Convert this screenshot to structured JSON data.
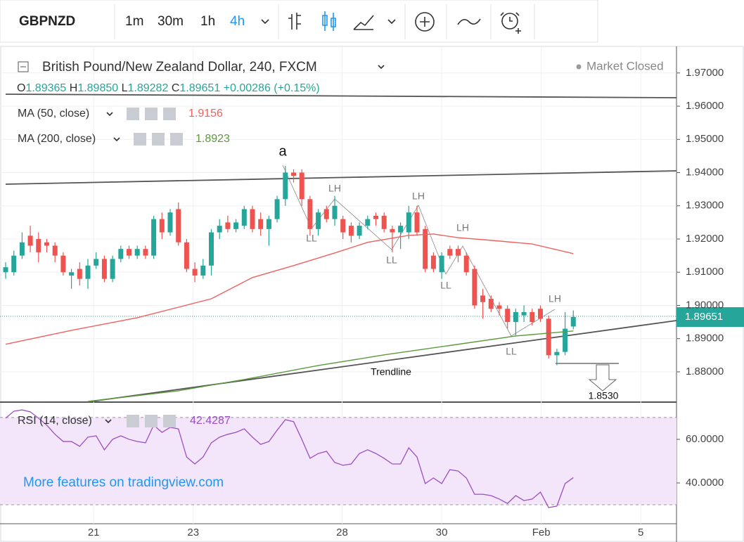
{
  "toolbar": {
    "symbol": "GBPNZD",
    "intervals": [
      "1m",
      "30m",
      "1h",
      "4h"
    ]
  },
  "watermark": "More features on tradingview.com",
  "chart_data": [
    {
      "type": "candlestick",
      "title": "British Pound/New Zealand Dollar, 240, FXCM",
      "status": "Market Closed",
      "ohlc_labels": [
        "O",
        "H",
        "L",
        "C"
      ],
      "last_candle_labels": [
        "1.89365",
        "1.89850",
        "1.89282",
        "1.89651"
      ],
      "change": "+0.00286 (+0.15%)",
      "up_color": "#26a69a",
      "down_color": "#ef5350",
      "candles": [
        [
          1.91,
          1.913,
          1.908,
          1.9115
        ],
        [
          1.91,
          1.9165,
          1.909,
          1.915
        ],
        [
          1.915,
          1.922,
          1.914,
          1.919
        ],
        [
          1.921,
          1.924,
          1.916,
          1.918
        ],
        [
          1.92,
          1.922,
          1.913,
          1.916
        ],
        [
          1.919,
          1.92,
          1.916,
          1.918
        ],
        [
          1.918,
          1.919,
          1.913,
          1.915
        ],
        [
          1.915,
          1.916,
          1.909,
          1.91
        ],
        [
          1.909,
          1.911,
          1.905,
          1.91
        ],
        [
          1.911,
          1.913,
          1.906,
          1.908
        ],
        [
          1.908,
          1.914,
          1.905,
          1.912
        ],
        [
          1.912,
          1.916,
          1.911,
          1.914
        ],
        [
          1.914,
          1.915,
          1.907,
          1.908
        ],
        [
          1.908,
          1.915,
          1.907,
          1.914
        ],
        [
          1.914,
          1.918,
          1.913,
          1.917
        ],
        [
          1.917,
          1.918,
          1.914,
          1.915
        ],
        [
          1.915,
          1.918,
          1.914,
          1.917
        ],
        [
          1.917,
          1.918,
          1.914,
          1.915
        ],
        [
          1.915,
          1.927,
          1.914,
          1.926
        ],
        [
          1.926,
          1.928,
          1.92,
          1.922
        ],
        [
          1.922,
          1.929,
          1.921,
          1.928
        ],
        [
          1.929,
          1.931,
          1.918,
          1.919
        ],
        [
          1.919,
          1.92,
          1.91,
          1.911
        ],
        [
          1.911,
          1.913,
          1.907,
          1.909
        ],
        [
          1.909,
          1.914,
          1.908,
          1.912
        ],
        [
          1.912,
          1.923,
          1.909,
          1.922
        ],
        [
          1.922,
          1.926,
          1.92,
          1.924
        ],
        [
          1.925,
          1.927,
          1.922,
          1.923
        ],
        [
          1.923,
          1.926,
          1.922,
          1.925
        ],
        [
          1.924,
          1.93,
          1.923,
          1.929
        ],
        [
          1.929,
          1.93,
          1.922,
          1.923
        ],
        [
          1.926,
          1.928,
          1.921,
          1.923
        ],
        [
          1.923,
          1.927,
          1.918,
          1.926
        ],
        [
          1.926,
          1.933,
          1.925,
          1.932
        ],
        [
          1.932,
          1.942,
          1.93,
          1.94
        ],
        [
          1.94,
          1.941,
          1.937,
          1.939
        ],
        [
          1.94,
          1.941,
          1.93,
          1.932
        ],
        [
          1.932,
          1.933,
          1.921,
          1.923
        ],
        [
          1.923,
          1.929,
          1.921,
          1.928
        ],
        [
          1.929,
          1.93,
          1.925,
          1.926
        ],
        [
          1.926,
          1.933,
          1.924,
          1.93
        ],
        [
          1.926,
          1.927,
          1.92,
          1.922
        ],
        [
          1.924,
          1.925,
          1.919,
          1.921
        ],
        [
          1.921,
          1.925,
          1.92,
          1.924
        ],
        [
          1.924,
          1.927,
          1.923,
          1.926
        ],
        [
          1.927,
          1.928,
          1.924,
          1.926
        ],
        [
          1.927,
          1.928,
          1.922,
          1.923
        ],
        [
          1.923,
          1.924,
          1.916,
          1.922
        ],
        [
          1.922,
          1.925,
          1.917,
          1.924
        ],
        [
          1.922,
          1.93,
          1.92,
          1.928
        ],
        [
          1.928,
          1.93,
          1.921,
          1.922
        ],
        [
          1.923,
          1.924,
          1.91,
          1.911
        ],
        [
          1.915,
          1.916,
          1.91,
          1.911
        ],
        [
          1.91,
          1.916,
          1.908,
          1.915
        ],
        [
          1.917,
          1.918,
          1.914,
          1.915
        ],
        [
          1.917,
          1.918,
          1.913,
          1.915
        ],
        [
          1.915,
          1.916,
          1.909,
          1.91
        ],
        [
          1.911,
          1.912,
          1.899,
          1.9
        ],
        [
          1.903,
          1.905,
          1.896,
          1.901
        ],
        [
          1.902,
          1.903,
          1.898,
          1.899
        ],
        [
          1.9,
          1.901,
          1.897,
          1.899
        ],
        [
          1.899,
          1.9,
          1.893,
          1.895
        ],
        [
          1.895,
          1.899,
          1.891,
          1.898
        ],
        [
          1.897,
          1.9,
          1.895,
          1.898
        ],
        [
          1.898,
          1.899,
          1.894,
          1.895
        ],
        [
          1.899,
          1.9,
          1.895,
          1.896
        ],
        [
          1.896,
          1.897,
          1.884,
          1.885
        ],
        [
          1.885,
          1.887,
          1.882,
          1.886
        ],
        [
          1.886,
          1.898,
          1.885,
          1.893
        ],
        [
          1.89365,
          1.8985,
          1.89282,
          1.89651
        ]
      ],
      "series": [
        {
          "name": "MA (50, close)",
          "color": "#f0605d",
          "x": [
            0,
            8,
            16,
            25,
            30,
            35,
            40,
            44,
            49,
            52,
            55,
            59,
            64,
            69
          ],
          "values": [
            1.8883,
            1.8925,
            1.8963,
            1.902,
            1.9084,
            1.912,
            1.9158,
            1.919,
            1.9211,
            1.9215,
            1.9204,
            1.9196,
            1.9185,
            1.9156
          ]
        },
        {
          "name": "MA (200, close)",
          "color": "#5b9a3c",
          "x": [
            10,
            21,
            29,
            38,
            46,
            55,
            62,
            69
          ],
          "values": [
            1.8711,
            1.8743,
            1.8777,
            1.8819,
            1.8851,
            1.8883,
            1.8908,
            1.8923
          ]
        }
      ],
      "xlim": [
        -0.684,
        81.54
      ],
      "xticks": [
        {
          "value": 10.7,
          "label": "21"
        },
        {
          "value": 22.8,
          "label": "23"
        },
        {
          "value": 40.9,
          "label": "28"
        },
        {
          "value": 53.0,
          "label": "30"
        },
        {
          "value": 65.1,
          "label": "Feb"
        },
        {
          "value": 77.2,
          "label": "5"
        }
      ],
      "ylim": [
        1.8711,
        1.978
      ],
      "yticks": [
        {
          "value": 1.97,
          "label": "1.97000"
        },
        {
          "value": 1.96,
          "label": "1.96000"
        },
        {
          "value": 1.95,
          "label": "1.95000"
        },
        {
          "value": 1.94,
          "label": "1.94000"
        },
        {
          "value": 1.93,
          "label": "1.93000"
        },
        {
          "value": 1.92,
          "label": "1.92000"
        },
        {
          "value": 1.91,
          "label": "1.91000"
        },
        {
          "value": 1.9,
          "label": "1.90000"
        },
        {
          "value": 1.89,
          "label": "1.89000"
        },
        {
          "value": 1.88,
          "label": "1.88000"
        }
      ],
      "grid": true,
      "annotations": [
        "a",
        "LH",
        "LL",
        "LH",
        "LL",
        "LH",
        "LL",
        "LH",
        "LL",
        "Trendline",
        "1.8530"
      ]
    },
    {
      "type": "line",
      "name": "RSI (14, close)",
      "color": "#9c4fc2",
      "values": [
        69.7,
        72.9,
        73.5,
        72.6,
        69.7,
        66.5,
        62.3,
        59.0,
        59.0,
        56.8,
        61.0,
        61.6,
        55.2,
        60.0,
        61.6,
        60.0,
        59.0,
        58.4,
        66.5,
        63.2,
        65.5,
        64.8,
        51.9,
        48.7,
        51.9,
        58.4,
        61.0,
        62.3,
        63.2,
        64.8,
        61.0,
        57.7,
        59.0,
        64.2,
        69.0,
        68.1,
        60.0,
        51.3,
        53.5,
        54.5,
        49.4,
        48.1,
        48.7,
        53.5,
        55.2,
        53.5,
        51.3,
        48.7,
        48.7,
        56.1,
        51.9,
        39.7,
        42.3,
        39.7,
        46.1,
        45.5,
        42.3,
        34.8,
        34.8,
        34.2,
        32.6,
        30.6,
        34.2,
        31.9,
        32.6,
        35.8,
        28.7,
        29.4,
        39.7,
        42.4287
      ],
      "band": [
        30,
        70
      ],
      "band_color": "#f3e6fb",
      "xlim": [
        -0.684,
        81.54
      ],
      "ylim": [
        21.3,
        76.1
      ],
      "yticks": [
        {
          "value": 60,
          "label": "60.0000"
        },
        {
          "value": 40,
          "label": "40.0000"
        }
      ],
      "grid": true
    }
  ]
}
